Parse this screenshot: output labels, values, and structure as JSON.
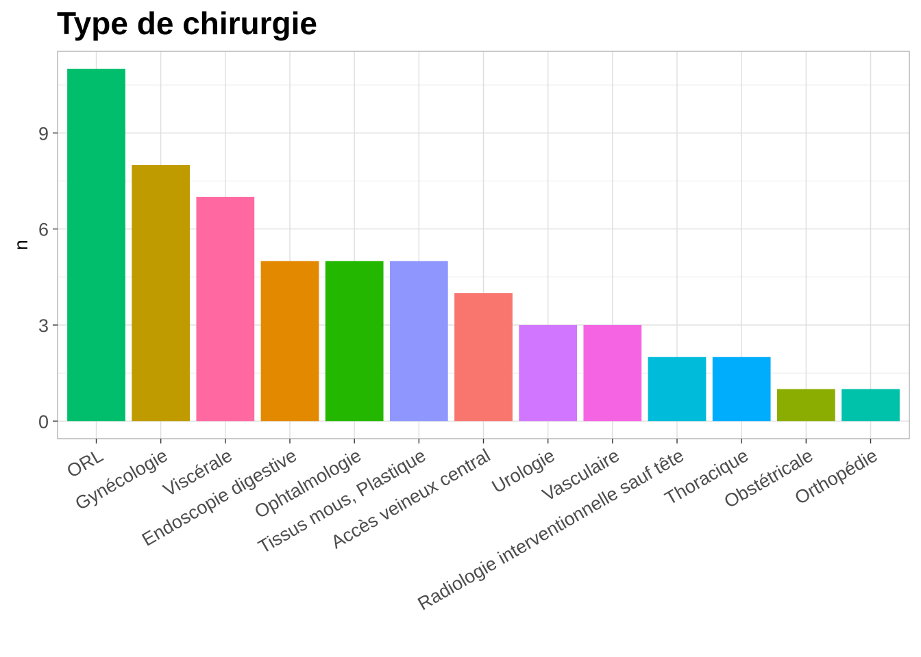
{
  "chart_data": {
    "type": "bar",
    "title": "Type de chirurgie",
    "xlabel": "",
    "ylabel": "n",
    "categories": [
      "ORL",
      "Gynécologie",
      "Viscérale",
      "Endoscopie digestive",
      "Ophtalmologie",
      "Tissus mous, Plastique",
      "Accès veineux central",
      "Urologie",
      "Vasculaire",
      "Radiologie interventionnelle sauf tête",
      "Thoracique",
      "Obstétricale",
      "Orthopédie"
    ],
    "values": [
      11,
      8,
      7,
      5,
      5,
      5,
      4,
      3,
      3,
      2,
      2,
      1,
      1
    ],
    "colors": [
      "#00BE6C",
      "#BF9B00",
      "#FF68A1",
      "#E38900",
      "#24B700",
      "#8F97FF",
      "#F8766D",
      "#D177FF",
      "#F564E3",
      "#00BBDA",
      "#00ACFC",
      "#8BAC00",
      "#00C1AA"
    ],
    "ylim": [
      -0.55,
      11.55
    ],
    "yticks": [
      0,
      3,
      6,
      9
    ],
    "grid": true,
    "legend": "none"
  }
}
